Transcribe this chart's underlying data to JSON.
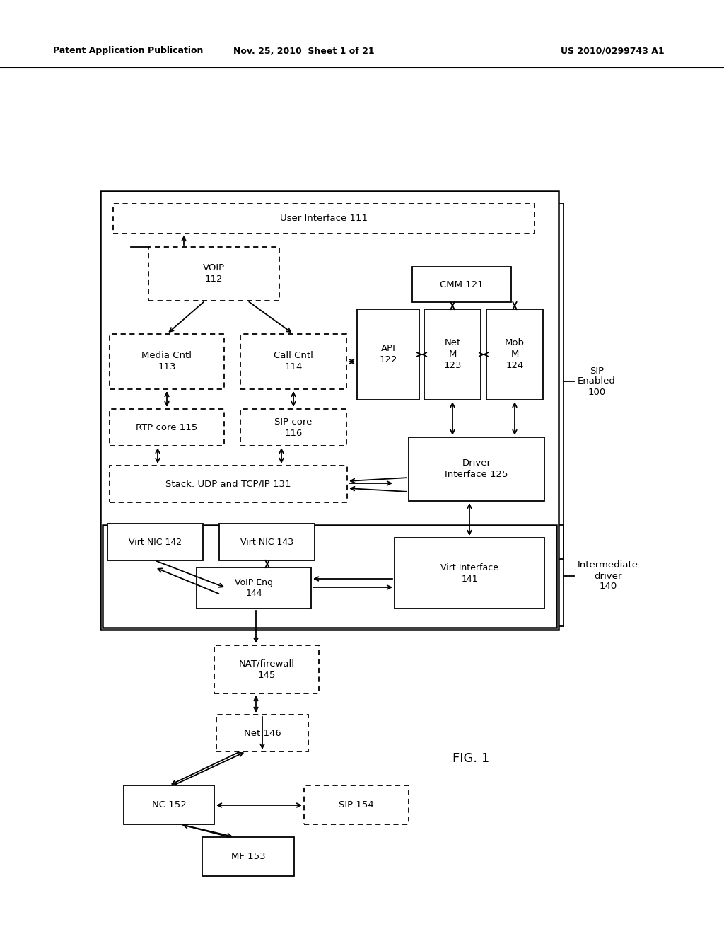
{
  "title_left": "Patent Application Publication",
  "title_mid": "Nov. 25, 2010  Sheet 1 of 21",
  "title_right": "US 2010/0299743 A1",
  "fig_label": "FIG. 1",
  "background": "#ffffff",
  "text_color": "#000000",
  "label_sip_enabled": "SIP\nEnabled\n100",
  "label_intermediate": "Intermediate\ndriver\n140"
}
